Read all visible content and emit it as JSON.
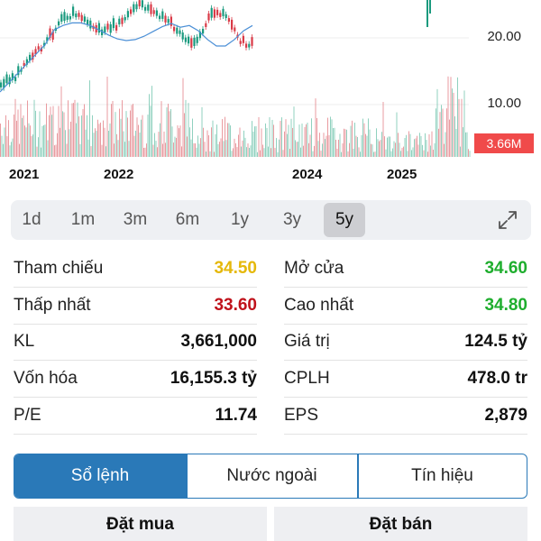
{
  "chart": {
    "y_labels": [
      "20.00",
      "10.00"
    ],
    "x_labels": [
      "2021",
      "2022",
      "2024",
      "2025"
    ],
    "volume_badge": "3.66M"
  },
  "range_selector": {
    "options": [
      "1d",
      "1m",
      "3m",
      "6m",
      "1y",
      "3y",
      "5y"
    ],
    "active": "5y"
  },
  "stats": {
    "ref_label": "Tham chiếu",
    "ref_value": "34.50",
    "open_label": "Mở cửa",
    "open_value": "34.60",
    "low_label": "Thấp nhất",
    "low_value": "33.60",
    "high_label": "Cao nhất",
    "high_value": "34.80",
    "vol_label": "KL",
    "vol_value": "3,661,000",
    "value_label": "Giá trị",
    "value_value": "124.5 tỷ",
    "cap_label": "Vốn hóa",
    "cap_value": "16,155.3 tỷ",
    "shares_label": "CPLH",
    "shares_value": "478.0 tr",
    "pe_label": "P/E",
    "pe_value": "11.74",
    "eps_label": "EPS",
    "eps_value": "2,879"
  },
  "colors": {
    "ref": "#e5b80b",
    "up": "#1fae2e",
    "down": "#c0121b",
    "accent": "#2a79b8",
    "volume_badge": "#f04a4a"
  },
  "tabs": {
    "items": [
      "Sổ lệnh",
      "Nước ngoài",
      "Tín hiệu"
    ],
    "active": "Sổ lệnh"
  },
  "actions": {
    "buy_label": "Đặt mua",
    "sell_label": "Đặt bán"
  }
}
